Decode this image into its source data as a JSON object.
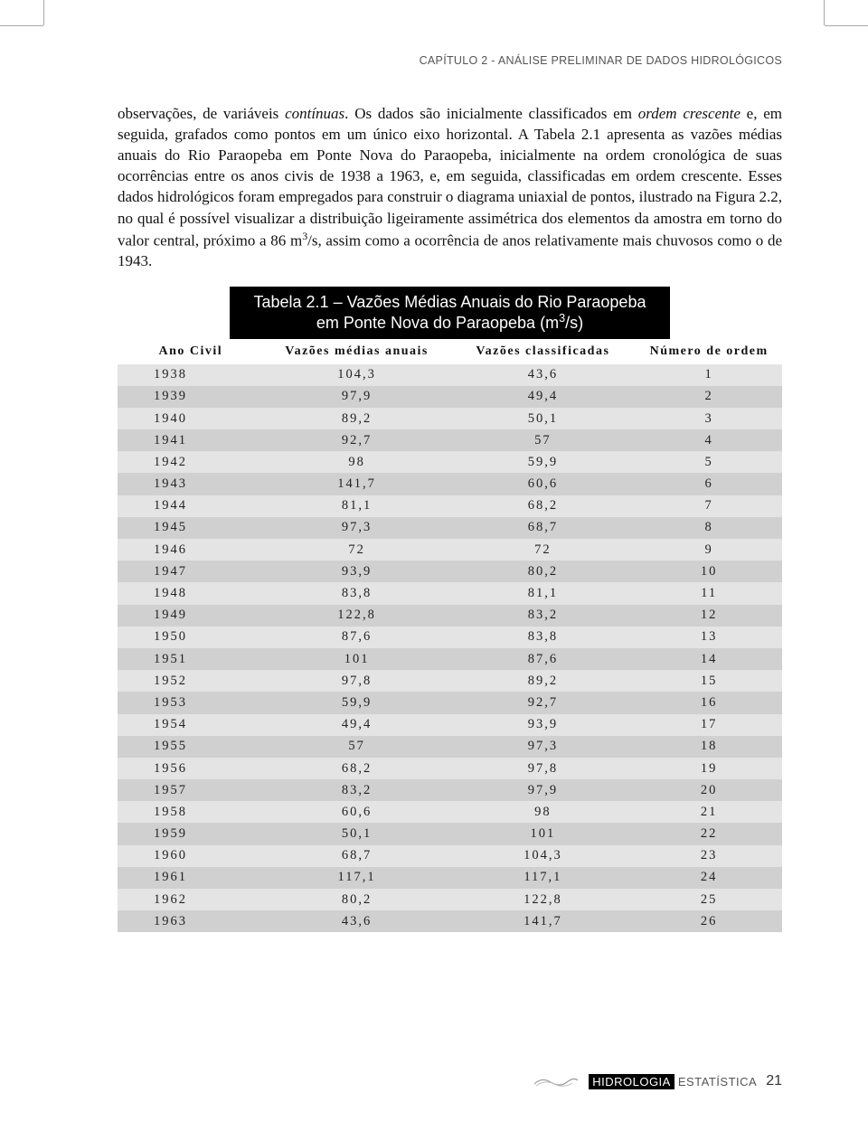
{
  "chapter_header": "CAPÍTULO 2 - ANÁLISE PRELIMINAR DE DADOS HIDROLÓGICOS",
  "paragraph": {
    "pre_italic1": "observações, de variáveis ",
    "italic1": "contínuas",
    "mid1": ". Os dados são inicialmente classificados em ",
    "italic2": "ordem crescente",
    "mid2": " e, em seguida, grafados como pontos em um único eixo horizontal. A Tabela 2.1 apresenta as vazões médias anuais do Rio Paraopeba em Ponte Nova do Paraopeba, inicialmente na ordem cronológica de suas ocorrências entre os anos civis de 1938 a 1963, e, em seguida, classificadas em ordem crescente. Esses dados hidrológicos foram empregados para construir o diagrama uniaxial de pontos, ilustrado na Figura 2.2, no qual é possível visualizar a distribuição ligeiramente assimétrica dos elementos da amostra em torno do valor central, próximo a 86 m",
    "sup": "3",
    "tail": "/s, assim como a ocorrência de anos relativamente mais chuvosos como o de 1943."
  },
  "table_title": {
    "line1": "Tabela 2.1 – Vazões Médias Anuais do Rio Paraopeba",
    "line2_pre": "em Ponte Nova do Paraopeba (m",
    "line2_sup": "3",
    "line2_post": "/s)"
  },
  "table": {
    "headers": [
      "Ano Civil",
      "Vazões médias anuais",
      "Vazões classificadas",
      "Número de ordem"
    ],
    "rows": [
      [
        "1938",
        "104,3",
        "43,6",
        "1"
      ],
      [
        "1939",
        "97,9",
        "49,4",
        "2"
      ],
      [
        "1940",
        "89,2",
        "50,1",
        "3"
      ],
      [
        "1941",
        "92,7",
        "57",
        "4"
      ],
      [
        "1942",
        "98",
        "59,9",
        "5"
      ],
      [
        "1943",
        "141,7",
        "60,6",
        "6"
      ],
      [
        "1944",
        "81,1",
        "68,2",
        "7"
      ],
      [
        "1945",
        "97,3",
        "68,7",
        "8"
      ],
      [
        "1946",
        "72",
        "72",
        "9"
      ],
      [
        "1947",
        "93,9",
        "80,2",
        "10"
      ],
      [
        "1948",
        "83,8",
        "81,1",
        "11"
      ],
      [
        "1949",
        "122,8",
        "83,2",
        "12"
      ],
      [
        "1950",
        "87,6",
        "83,8",
        "13"
      ],
      [
        "1951",
        "101",
        "87,6",
        "14"
      ],
      [
        "1952",
        "97,8",
        "89,2",
        "15"
      ],
      [
        "1953",
        "59,9",
        "92,7",
        "16"
      ],
      [
        "1954",
        "49,4",
        "93,9",
        "17"
      ],
      [
        "1955",
        "57",
        "97,3",
        "18"
      ],
      [
        "1956",
        "68,2",
        "97,8",
        "19"
      ],
      [
        "1957",
        "83,2",
        "97,9",
        "20"
      ],
      [
        "1958",
        "60,6",
        "98",
        "21"
      ],
      [
        "1959",
        "50,1",
        "101",
        "22"
      ],
      [
        "1960",
        "68,7",
        "104,3",
        "23"
      ],
      [
        "1961",
        "117,1",
        "117,1",
        "24"
      ],
      [
        "1962",
        "80,2",
        "122,8",
        "25"
      ],
      [
        "1963",
        "43,6",
        "141,7",
        "26"
      ]
    ],
    "header_bg": "#ffffff",
    "row_even_bg": "#e4e4e4",
    "row_odd_bg": "#d0d0d0",
    "header_fontsize": 14,
    "cell_fontsize": 14.5,
    "letter_spacing": 2
  },
  "footer": {
    "brand1": "HIDROLOGIA",
    "brand2": "ESTATÍSTICA",
    "page": "21"
  }
}
